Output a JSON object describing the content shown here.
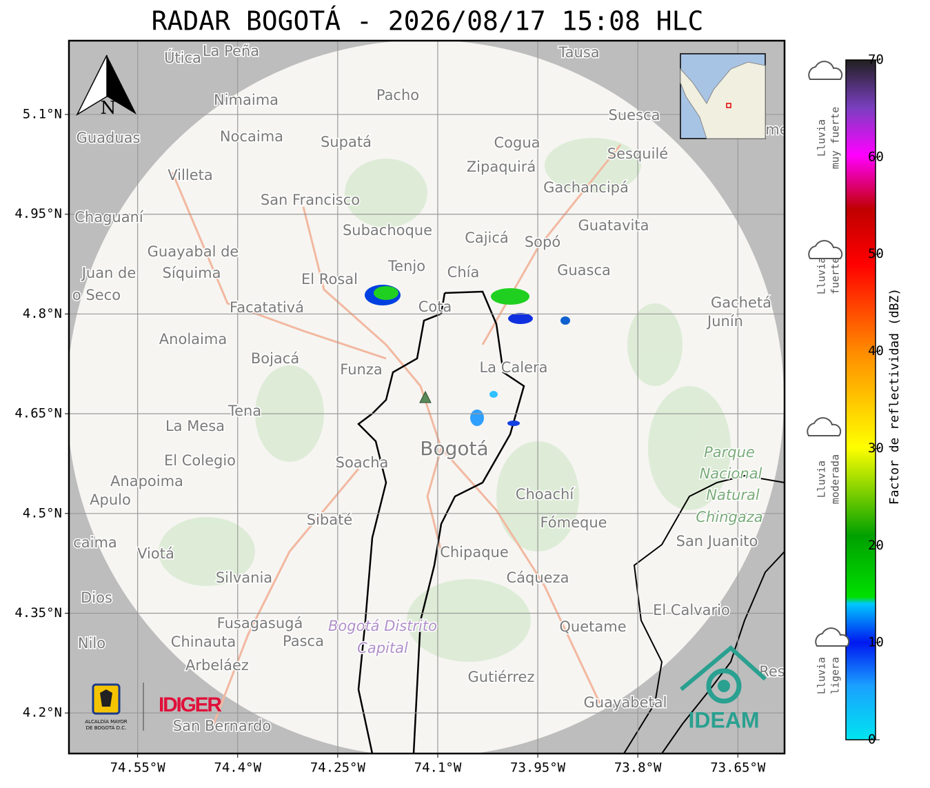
{
  "title": "RADAR BOGOTÁ - 2026/08/17 15:08 HLC",
  "map": {
    "xlim": [
      -74.653,
      -73.58
    ],
    "ylim": [
      4.139,
      5.211
    ],
    "grid": true,
    "xticks": [
      {
        "value": -74.55,
        "label": "74.55°W"
      },
      {
        "value": -74.4,
        "label": "74.4°W"
      },
      {
        "value": -74.25,
        "label": "74.25°W"
      },
      {
        "value": -74.1,
        "label": "74.1°W"
      },
      {
        "value": -73.95,
        "label": "73.95°W"
      },
      {
        "value": -73.8,
        "label": "73.8°W"
      },
      {
        "value": -73.65,
        "label": "73.65°W"
      }
    ],
    "yticks": [
      {
        "value": 5.1,
        "label": "5.1°N"
      },
      {
        "value": 4.95,
        "label": "4.95°N"
      },
      {
        "value": 4.8,
        "label": "4.8°N"
      },
      {
        "value": 4.65,
        "label": "4.65°N"
      },
      {
        "value": 4.5,
        "label": "4.5°N"
      },
      {
        "value": 4.35,
        "label": "4.35°N"
      },
      {
        "value": 4.2,
        "label": "4.2°N"
      }
    ],
    "places": [
      "Útica",
      "La Peña",
      "Tausa",
      "Nimaima",
      "Pacho",
      "Suesca",
      "Guaduas",
      "Nocaima",
      "Supatá",
      "Cogua",
      "Sesquilé",
      "Villeta",
      "Zipaquirá",
      "Gachancipá",
      "San Francisco",
      "Chaguaní",
      "Guatavita",
      "Subachoque",
      "Cajicá",
      "Sopó",
      "Guayabal de",
      "Síquima",
      "Tenjo",
      "Chía",
      "Guasca",
      "Juan de",
      "o Seco",
      "El Rosal",
      "Cota",
      "Facatativá",
      "Gachetá",
      "Junín",
      "Anolaima",
      "Bojacá",
      "Funza",
      "La Calera",
      "Tena",
      "La Mesa",
      "Bogotá",
      "Soacha",
      "El Colegio",
      "Parque",
      "Nacional",
      "Natural",
      "Chingaza",
      "Anapoima",
      "Apulo",
      "Choachí",
      "Sibaté",
      "Fómeque",
      "San Juanito",
      "caima",
      "Viotá",
      "Chipaque",
      "Silvania",
      "Cáqueza",
      "Dios",
      "El Calvario",
      "Fusagasugá",
      "Quetame",
      "Bogotá Distrito",
      "Capital",
      "Nilo",
      "Chinauta",
      "Pasca",
      "Arbeláez",
      "Gutiérrez",
      "Guayabetal",
      "San Bernardo",
      "Res",
      "me"
    ]
  },
  "colorbar": {
    "label": "Factor de reflectividad (dBZ)",
    "lim": [
      0,
      70
    ],
    "ticks": [
      0,
      10,
      20,
      30,
      40,
      50,
      60,
      70
    ],
    "legend": [
      {
        "lines": [
          "Lluvia",
          "ligera"
        ]
      },
      {
        "lines": [
          "Lluvia",
          "moderada"
        ]
      },
      {
        "lines": [
          "Lluvia",
          "fuerte"
        ]
      },
      {
        "lines": [
          "Lluvia",
          "muy fuerte"
        ]
      }
    ]
  },
  "logos": {
    "alcaldia": [
      "ALCALDÍA MAYOR",
      "DE BOGOTÁ D.C."
    ],
    "idiger": "IDIGER",
    "ideam": "IDEAM"
  },
  "north": "N"
}
